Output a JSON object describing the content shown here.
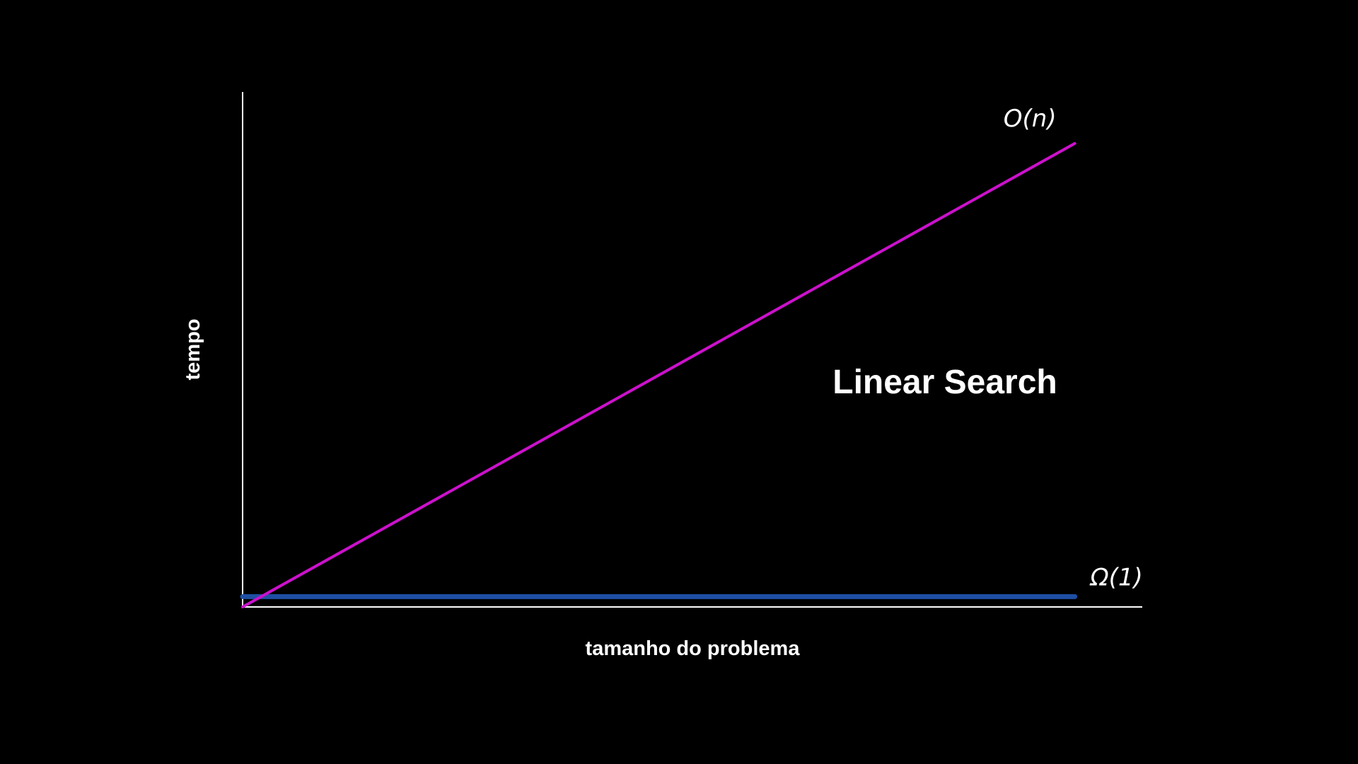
{
  "chart_data": {
    "type": "line",
    "title": "Linear Search",
    "xlabel": "tamanho do problema",
    "ylabel": "tempo",
    "xlim": [
      0,
      1
    ],
    "ylim": [
      0,
      1
    ],
    "grid": false,
    "legend": "none",
    "series": [
      {
        "label": "O(n)",
        "color": "#cc11cc",
        "x": [
          0,
          0.925
        ],
        "y": [
          0,
          0.9
        ]
      },
      {
        "label": "Ω(1)",
        "color": "#1e4fa3",
        "x": [
          0,
          0.925
        ],
        "y": [
          0.02,
          0.02
        ]
      }
    ],
    "axis_color": "#ffffff",
    "background": "#000000"
  }
}
